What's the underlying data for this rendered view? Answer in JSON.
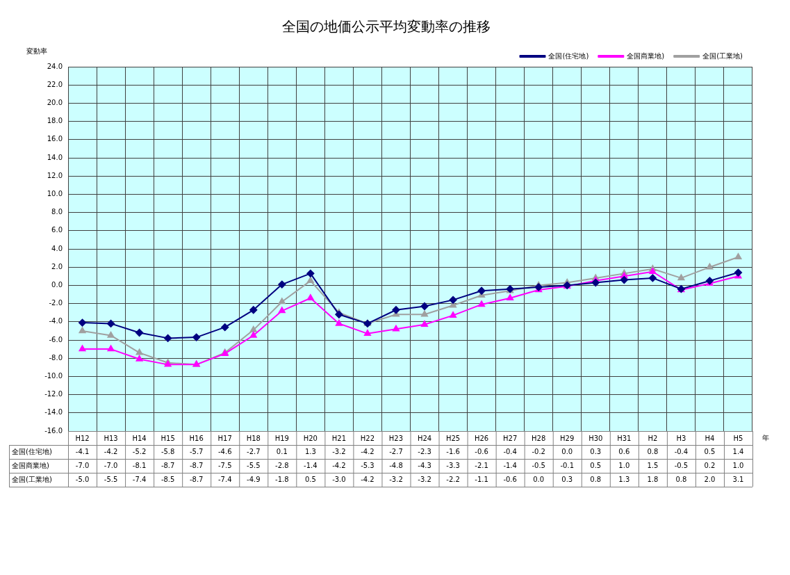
{
  "chart_data": {
    "type": "line",
    "title": "全国の地価公示平均変動率の推移",
    "xlabel": "年",
    "ylabel": "変動率",
    "categories": [
      "H12",
      "H13",
      "H14",
      "H15",
      "H16",
      "H17",
      "H18",
      "H19",
      "H20",
      "H21",
      "H22",
      "H23",
      "H24",
      "H25",
      "H26",
      "H27",
      "H28",
      "H29",
      "H30",
      "H31",
      "H2",
      "H3",
      "H4",
      "H5"
    ],
    "series": [
      {
        "name": "全国(住宅地)",
        "color": "#000080",
        "marker": "diamond",
        "values": [
          -4.1,
          -4.2,
          -5.2,
          -5.8,
          -5.7,
          -4.6,
          -2.7,
          0.1,
          1.3,
          -3.2,
          -4.2,
          -2.7,
          -2.3,
          -1.6,
          -0.6,
          -0.4,
          -0.2,
          0.0,
          0.3,
          0.6,
          0.8,
          -0.4,
          0.5,
          1.4
        ],
        "value_labels": [
          "-4.1",
          "-4.2",
          "-5.2",
          "-5.8",
          "-5.7",
          "-4.6",
          "-2.7",
          "0.1",
          "1.3",
          "-3.2",
          "-4.2",
          "-2.7",
          "-2.3",
          "-1.6",
          "-0.6",
          "-0.4",
          "-0.2",
          "0.0",
          "0.3",
          "0.6",
          "0.8",
          "-0.4",
          "0.5",
          "1.4"
        ]
      },
      {
        "name": "全国商業地)",
        "color": "#ff00ff",
        "marker": "triangle",
        "values": [
          -7.0,
          -7.0,
          -8.1,
          -8.7,
          -8.7,
          -7.5,
          -5.5,
          -2.8,
          -1.4,
          -4.2,
          -5.3,
          -4.8,
          -4.3,
          -3.3,
          -2.1,
          -1.4,
          -0.5,
          -0.1,
          0.5,
          1.0,
          1.5,
          -0.5,
          0.2,
          1.0
        ],
        "value_labels": [
          "-7.0",
          "-7.0",
          "-8.1",
          "-8.7",
          "-8.7",
          "-7.5",
          "-5.5",
          "-2.8",
          "-1.4",
          "-4.2",
          "-5.3",
          "-4.8",
          "-4.3",
          "-3.3",
          "-2.1",
          "-1.4",
          "-0.5",
          "-0.1",
          "0.5",
          "1.0",
          "1.5",
          "-0.5",
          "0.2",
          "1.0"
        ]
      },
      {
        "name": "全国(工業地)",
        "color": "#a0a0a0",
        "marker": "triangle",
        "values": [
          -5.0,
          -5.5,
          -7.4,
          -8.5,
          -8.7,
          -7.4,
          -4.9,
          -1.8,
          0.5,
          -3.0,
          -4.2,
          -3.2,
          -3.2,
          -2.2,
          -1.1,
          -0.6,
          0.0,
          0.3,
          0.8,
          1.3,
          1.8,
          0.8,
          2.0,
          3.1
        ],
        "value_labels": [
          "-5.0",
          "-5.5",
          "-7.4",
          "-8.5",
          "-8.7",
          "-7.4",
          "-4.9",
          "-1.8",
          "0.5",
          "-3.0",
          "-4.2",
          "-3.2",
          "-3.2",
          "-2.2",
          "-1.1",
          "-0.6",
          "0.0",
          "0.3",
          "0.8",
          "1.3",
          "1.8",
          "0.8",
          "2.0",
          "3.1"
        ]
      }
    ],
    "ylim": [
      -16,
      24
    ],
    "yticks": [
      {
        "value": -16,
        "label": "-16.0"
      },
      {
        "value": -14,
        "label": "-14.0"
      },
      {
        "value": -12,
        "label": "-12.0"
      },
      {
        "value": -10,
        "label": "-10.0"
      },
      {
        "value": -8,
        "label": "-8.0"
      },
      {
        "value": -6,
        "label": "-6.0"
      },
      {
        "value": -4,
        "label": "-4.0"
      },
      {
        "value": -2,
        "label": "-2.0"
      },
      {
        "value": 0,
        "label": "0.0"
      },
      {
        "value": 2,
        "label": "2.0"
      },
      {
        "value": 4,
        "label": "4.0"
      },
      {
        "value": 6,
        "label": "6.0"
      },
      {
        "value": 8,
        "label": "8.0"
      },
      {
        "value": 10,
        "label": "10.0"
      },
      {
        "value": 12,
        "label": "12.0"
      },
      {
        "value": 14,
        "label": "14.0"
      },
      {
        "value": 16,
        "label": "16.0"
      },
      {
        "value": 18,
        "label": "18.0"
      },
      {
        "value": 20,
        "label": "20.0"
      },
      {
        "value": 22,
        "label": "22.0"
      },
      {
        "value": 24,
        "label": "24.0"
      }
    ],
    "grid": true,
    "legend": "top right",
    "line_style": "solid"
  }
}
